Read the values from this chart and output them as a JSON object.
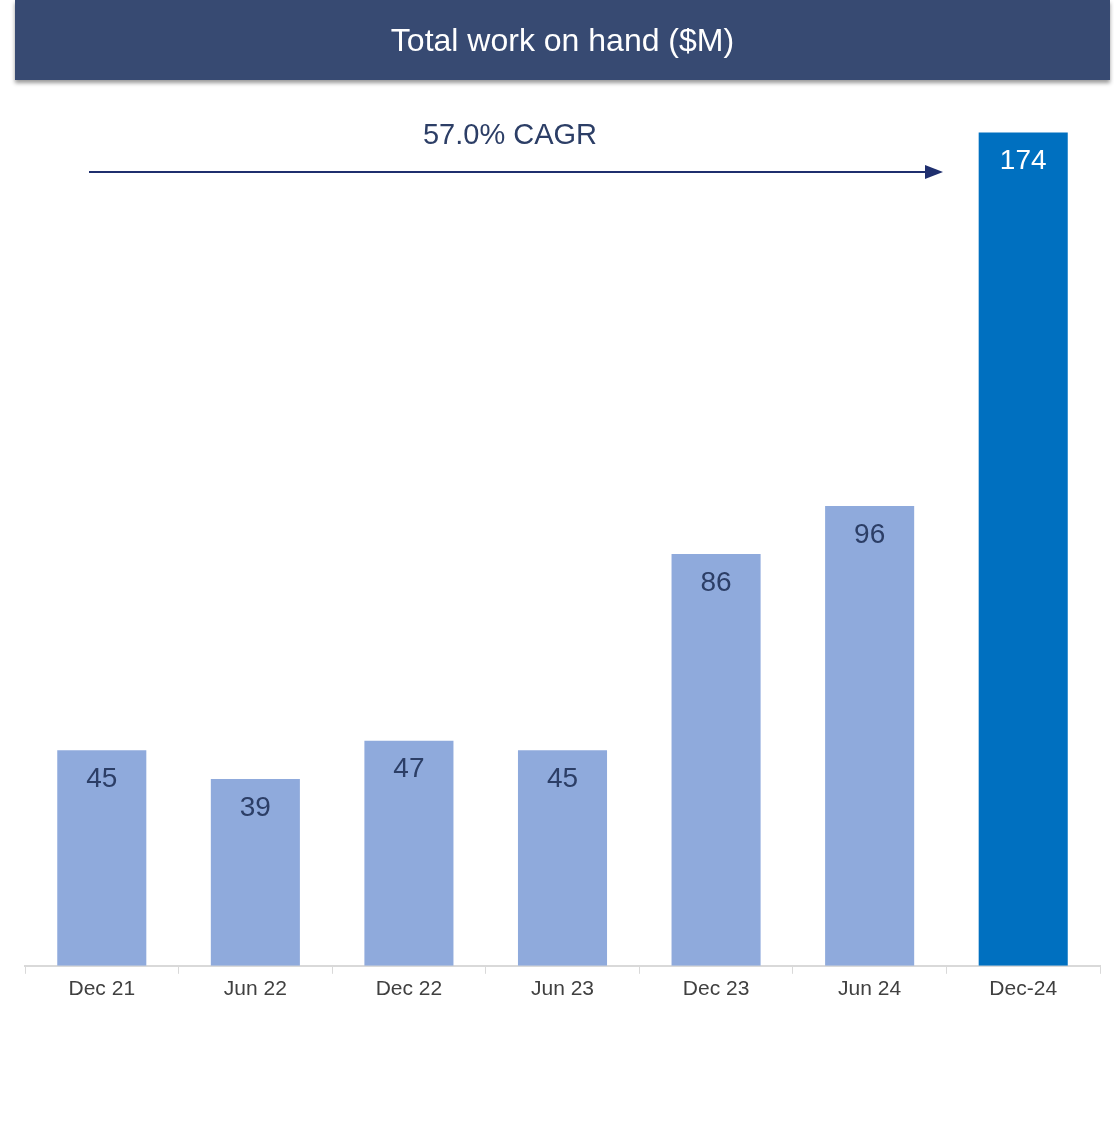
{
  "chart_data": {
    "type": "bar",
    "title": "Total work on hand ($M)",
    "categories": [
      "Dec 21",
      "Jun 22",
      "Dec 22",
      "Jun 23",
      "Dec 23",
      "Jun 24",
      "Dec-24"
    ],
    "values": [
      45,
      39,
      47,
      45,
      86,
      96,
      174
    ],
    "colors": [
      "#8faadc",
      "#8faadc",
      "#8faadc",
      "#8faadc",
      "#8faadc",
      "#8faadc",
      "#0070c0"
    ],
    "data_labels": true,
    "grid": false,
    "legend": false,
    "annotations": [
      "57.0% CAGR"
    ]
  }
}
